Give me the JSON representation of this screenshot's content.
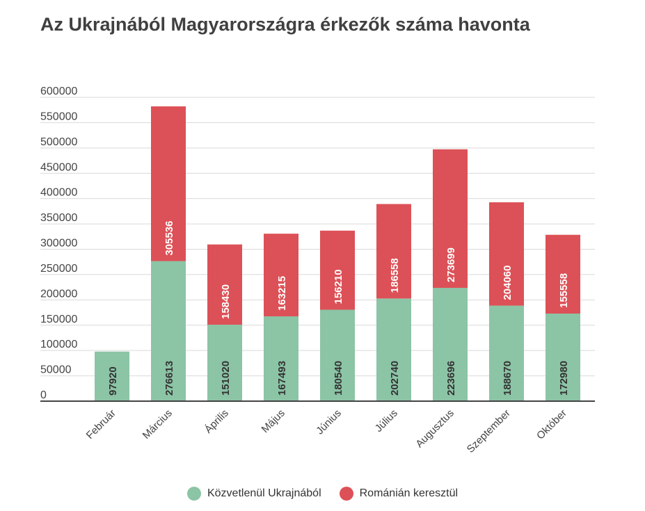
{
  "chart_data": {
    "type": "bar",
    "stacked": true,
    "title": "Az Ukrajnából Magyarországra érkezők száma havonta",
    "categories": [
      "Február",
      "Március",
      "Április",
      "Május",
      "Június",
      "Július",
      "Augusztus",
      "Szeptember",
      "Október"
    ],
    "series": [
      {
        "name": "Közvetlenül Ukrajnából",
        "color": "#8cc4a6",
        "values": [
          97920,
          276613,
          151020,
          167493,
          180540,
          202740,
          223696,
          188670,
          172980
        ]
      },
      {
        "name": "Románián keresztül",
        "color": "#dc5157",
        "values": [
          null,
          305536,
          158430,
          163215,
          156210,
          186558,
          273699,
          204060,
          155558
        ]
      }
    ],
    "ylim": [
      0,
      600000
    ],
    "yticks": [
      "0",
      "50000",
      "100000",
      "150000",
      "200000",
      "250000",
      "300000",
      "350000",
      "400000",
      "450000",
      "500000",
      "550000",
      "600000"
    ],
    "grid": true,
    "legend": "bottom"
  }
}
